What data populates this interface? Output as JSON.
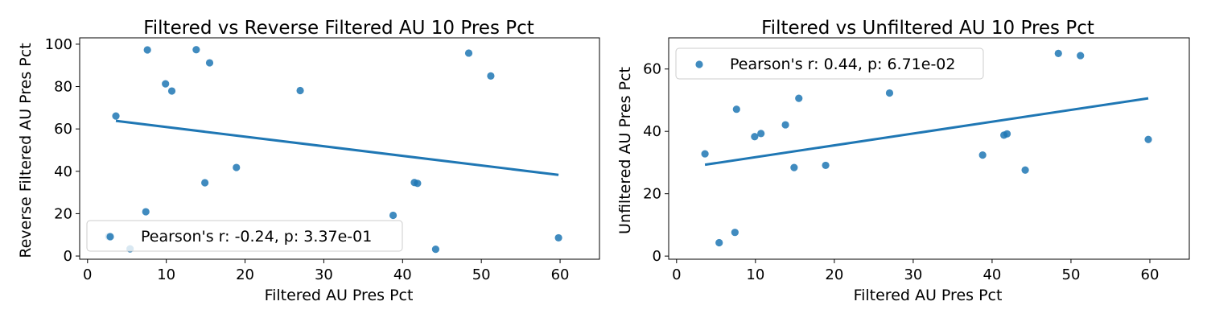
{
  "chart_data": [
    {
      "type": "scatter",
      "title": "Filtered vs Reverse Filtered AU 10 Pres Pct",
      "xlabel": "Filtered AU Pres Pct",
      "ylabel": "Reverse Filtered AU Pres Pct",
      "xlim": [
        -1,
        65
      ],
      "ylim": [
        -1.5,
        103
      ],
      "xticks": [
        0,
        10,
        20,
        30,
        40,
        50,
        60
      ],
      "yticks": [
        0,
        20,
        40,
        60,
        80,
        100
      ],
      "grid": false,
      "legend_position": "lower-left",
      "legend_label": "Pearson's r: -0.24, p: 3.37e-01",
      "color": "#1f77b4",
      "points": [
        [
          3.6,
          66.1
        ],
        [
          7.6,
          97.3
        ],
        [
          9.9,
          81.3
        ],
        [
          10.7,
          77.9
        ],
        [
          13.8,
          97.4
        ],
        [
          15.5,
          91.2
        ],
        [
          27.0,
          78.1
        ],
        [
          48.4,
          95.8
        ],
        [
          51.2,
          85.0
        ],
        [
          18.9,
          41.8
        ],
        [
          14.9,
          34.6
        ],
        [
          7.4,
          20.9
        ],
        [
          2.7,
          9.2
        ],
        [
          5.4,
          3.4
        ],
        [
          41.5,
          34.7
        ],
        [
          41.9,
          34.3
        ],
        [
          38.8,
          19.2
        ],
        [
          44.2,
          3.2
        ],
        [
          59.8,
          8.6
        ]
      ],
      "regression": {
        "x": [
          3.6,
          59.8
        ],
        "y": [
          63.8,
          38.3
        ]
      }
    },
    {
      "type": "scatter",
      "title": "Filtered vs Unfiltered AU 10 Pres Pct",
      "xlabel": "Filtered AU Pres Pct",
      "ylabel": "Unfiltered AU Pres Pct",
      "xlim": [
        -1,
        65
      ],
      "ylim": [
        -1,
        70
      ],
      "xticks": [
        0,
        10,
        20,
        30,
        40,
        50,
        60
      ],
      "yticks": [
        0,
        20,
        40,
        60
      ],
      "grid": false,
      "legend_position": "upper-left",
      "legend_label": "Pearson's r: 0.44, p: 6.71e-02",
      "color": "#1f77b4",
      "points": [
        [
          3.6,
          32.8
        ],
        [
          5.4,
          4.3
        ],
        [
          7.4,
          7.6
        ],
        [
          7.6,
          47.1
        ],
        [
          9.9,
          38.3
        ],
        [
          10.7,
          39.3
        ],
        [
          13.8,
          42.1
        ],
        [
          14.9,
          28.4
        ],
        [
          15.5,
          50.6
        ],
        [
          18.9,
          29.1
        ],
        [
          27.0,
          52.3
        ],
        [
          38.8,
          32.4
        ],
        [
          41.5,
          38.8
        ],
        [
          41.9,
          39.2
        ],
        [
          44.2,
          27.6
        ],
        [
          48.4,
          65.0
        ],
        [
          51.2,
          64.3
        ],
        [
          59.8,
          37.4
        ]
      ],
      "regression": {
        "x": [
          3.6,
          59.8
        ],
        "y": [
          29.3,
          50.6
        ]
      }
    }
  ]
}
